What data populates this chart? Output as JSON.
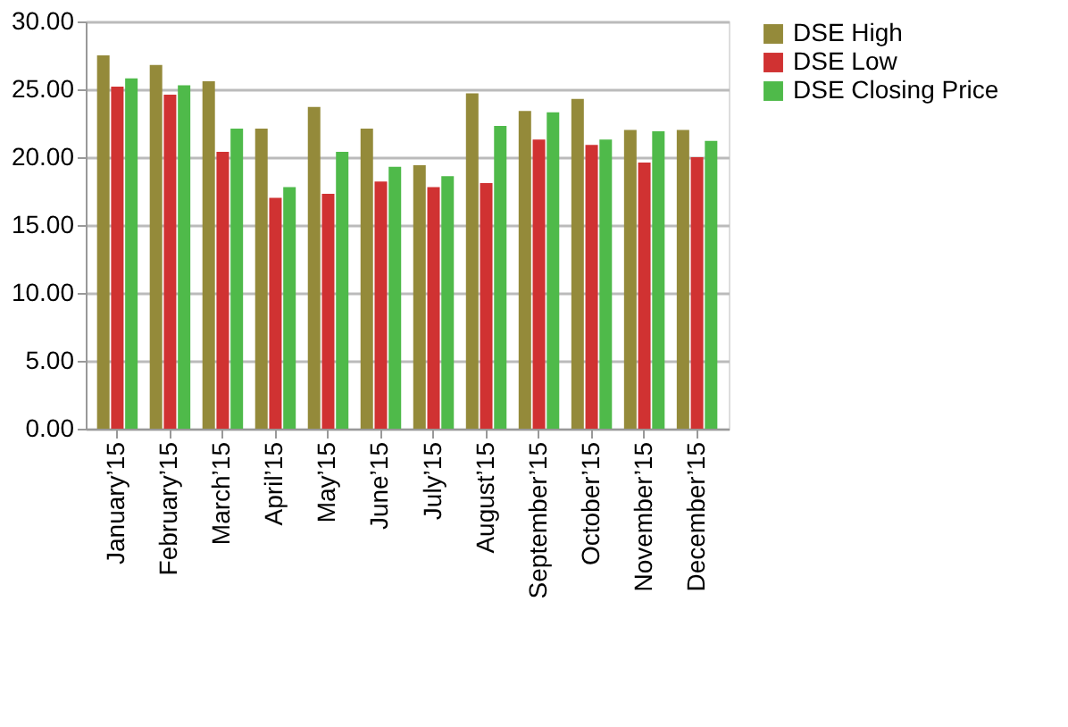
{
  "chart_data": {
    "type": "bar",
    "categories": [
      "January’15",
      "February’15",
      "March’15",
      "April’15",
      "May’15",
      "June’15",
      "July’15",
      "August’15",
      "September’15",
      "October’15",
      "November’15",
      "December’15"
    ],
    "series": [
      {
        "name": "DSE High",
        "color": "#948a3a",
        "values": [
          27.5,
          26.8,
          25.6,
          22.1,
          23.7,
          22.1,
          19.4,
          24.7,
          23.4,
          24.3,
          22.0,
          22.0
        ]
      },
      {
        "name": "DSE Low",
        "color": "#d03232",
        "values": [
          25.2,
          24.6,
          20.4,
          17.0,
          17.3,
          18.2,
          17.8,
          18.1,
          21.3,
          20.9,
          19.6,
          20.0
        ]
      },
      {
        "name": "DSE Closing Price",
        "color": "#4fba4a",
        "values": [
          25.8,
          25.3,
          22.1,
          17.8,
          20.4,
          19.3,
          18.6,
          22.3,
          23.3,
          21.3,
          21.9,
          21.2
        ]
      }
    ],
    "ylim": [
      0,
      30
    ],
    "yticks": [
      {
        "value": 0,
        "label": "0.00"
      },
      {
        "value": 5,
        "label": "5.00"
      },
      {
        "value": 10,
        "label": "10.00"
      },
      {
        "value": 15,
        "label": "15.00"
      },
      {
        "value": 20,
        "label": "20.00"
      },
      {
        "value": 25,
        "label": "25.00"
      },
      {
        "value": 30,
        "label": "30.00"
      }
    ],
    "grid": "y",
    "legend": "right"
  }
}
